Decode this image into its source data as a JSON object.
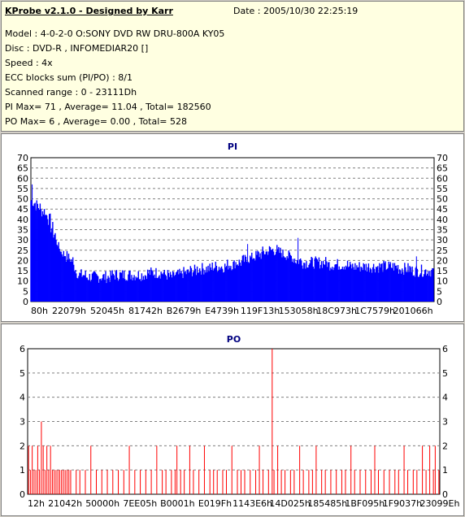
{
  "app_title": "KProbe v2.1.0 - Designed by Karr",
  "date_text": "Date : 2005/10/30 22:25:19",
  "info_lines": [
    "Model : 4-0-2-0 O:SONY    DVD RW DRU-800A  KY05",
    "Disc : DVD-R , INFOMEDIAR20 []",
    "Speed : 4x",
    "ECC blocks sum (PI/PO) : 8/1",
    "Scanned range : 0 - 23111Dh",
    "PI Max= 71 , Average= 11.04 , Total= 182560",
    "PO Max= 6 , Average= 0.00 , Total= 528"
  ],
  "colors": {
    "pi_series": "#0000ff",
    "po_series": "#ff0000",
    "title": "#000080",
    "panel_bg": "#ffffff",
    "info_bg": "#ffffe1",
    "window_bg": "#d4d0c8"
  },
  "chart_data": [
    {
      "type": "area",
      "title": "PI",
      "ylim": [
        0,
        70
      ],
      "yticks": [
        0,
        5,
        10,
        15,
        20,
        25,
        30,
        35,
        40,
        45,
        50,
        55,
        60,
        65,
        70
      ],
      "x_tick_labels": [
        "80h",
        "22079h",
        "52045h",
        "81742h",
        "B2679h",
        "E4739h",
        "119F13h",
        "153058h",
        "18C973h",
        "1C7579h",
        "201066h"
      ],
      "grid": true,
      "series": [
        {
          "values": [
            49,
            48,
            47,
            46,
            44,
            44,
            42,
            40,
            36,
            33,
            29,
            26,
            24,
            23,
            22,
            21,
            20,
            17,
            14,
            13,
            13,
            13,
            12,
            12,
            12,
            12,
            12,
            12,
            12,
            12,
            12,
            12,
            13,
            13,
            13,
            13,
            13,
            13,
            13,
            13,
            13,
            13,
            13,
            13,
            13,
            13,
            14,
            14,
            14,
            14,
            14,
            14,
            14,
            13,
            13,
            12,
            12,
            13,
            13,
            13,
            14,
            14,
            14,
            15,
            15,
            15,
            16,
            16,
            16,
            16,
            16,
            16,
            17,
            17,
            17,
            17,
            17,
            17,
            18,
            18,
            18,
            19,
            19,
            19,
            20,
            20,
            21,
            21,
            22,
            22,
            23,
            23,
            24,
            24,
            25,
            25,
            25,
            25,
            24,
            24,
            23,
            23,
            22,
            22,
            21,
            20,
            20,
            20,
            19,
            19,
            19,
            19,
            19,
            19,
            19,
            19,
            19,
            19,
            18,
            18,
            18,
            18,
            18,
            18,
            18,
            18,
            17,
            17,
            17,
            17,
            17,
            17,
            17,
            17,
            17,
            17,
            17,
            17,
            17,
            17,
            17,
            17,
            17,
            17,
            17,
            17,
            16,
            16,
            16,
            16,
            16,
            15,
            15,
            15,
            15,
            15,
            15,
            15,
            15,
            15
          ]
        }
      ],
      "spikes": [
        [
          0.5,
          57
        ],
        [
          7.5,
          38
        ],
        [
          86,
          28
        ],
        [
          106,
          31
        ],
        [
          153,
          22
        ]
      ]
    },
    {
      "type": "bar",
      "title": "PO",
      "ylim": [
        0,
        6
      ],
      "yticks": [
        0,
        1,
        2,
        3,
        4,
        5,
        6
      ],
      "x_tick_labels": [
        "12h",
        "21042h",
        "50000h",
        "7EE05h",
        "B0001h",
        "E019Fh",
        "1143E6h",
        "14D025h",
        "185485h",
        "1BF095h",
        "1F9037h",
        "23099Eh"
      ],
      "grid": true,
      "series": [
        {
          "values": [
            2,
            1,
            2,
            1,
            1,
            2,
            1,
            3,
            2,
            1,
            2,
            1,
            2,
            1,
            1,
            1,
            1,
            1,
            1,
            1,
            1,
            1,
            1,
            1,
            0,
            0,
            1,
            0,
            1,
            0,
            0,
            1,
            0,
            0,
            2,
            0,
            0,
            1,
            0,
            0,
            1,
            0,
            0,
            1,
            0,
            0,
            1,
            0,
            0,
            1,
            0,
            0,
            1,
            0,
            0,
            2,
            0,
            0,
            1,
            0,
            0,
            1,
            0,
            0,
            1,
            0,
            0,
            1,
            0,
            0,
            2,
            0,
            0,
            1,
            0,
            1,
            0,
            0,
            1,
            0,
            1,
            2,
            0,
            1,
            0,
            1,
            0,
            0,
            2,
            0,
            1,
            0,
            0,
            1,
            0,
            0,
            2,
            0,
            0,
            1,
            0,
            1,
            0,
            1,
            0,
            0,
            1,
            0,
            1,
            0,
            0,
            2,
            0,
            0,
            1,
            0,
            1,
            0,
            1,
            0,
            0,
            1,
            0,
            0,
            1,
            0,
            2,
            0,
            1,
            0,
            0,
            1,
            0,
            6,
            1,
            0,
            2,
            0,
            1,
            0,
            1,
            0,
            0,
            1,
            0,
            1,
            0,
            0,
            2,
            0,
            1,
            0,
            0,
            1,
            0,
            1,
            0,
            2,
            0,
            0,
            1,
            0,
            1,
            0,
            0,
            1,
            0,
            0,
            1,
            0,
            0,
            1,
            0,
            1,
            0,
            0,
            2,
            0,
            1,
            0,
            0,
            1,
            0,
            0,
            1,
            0,
            0,
            1,
            0,
            2,
            0,
            1,
            0,
            0,
            1,
            0,
            0,
            1,
            0,
            0,
            1,
            0,
            1,
            0,
            0,
            2,
            0,
            1,
            0,
            0,
            1,
            0,
            1,
            0,
            0,
            2,
            0,
            1,
            0,
            2,
            0,
            1,
            2,
            0,
            1
          ]
        }
      ]
    }
  ]
}
